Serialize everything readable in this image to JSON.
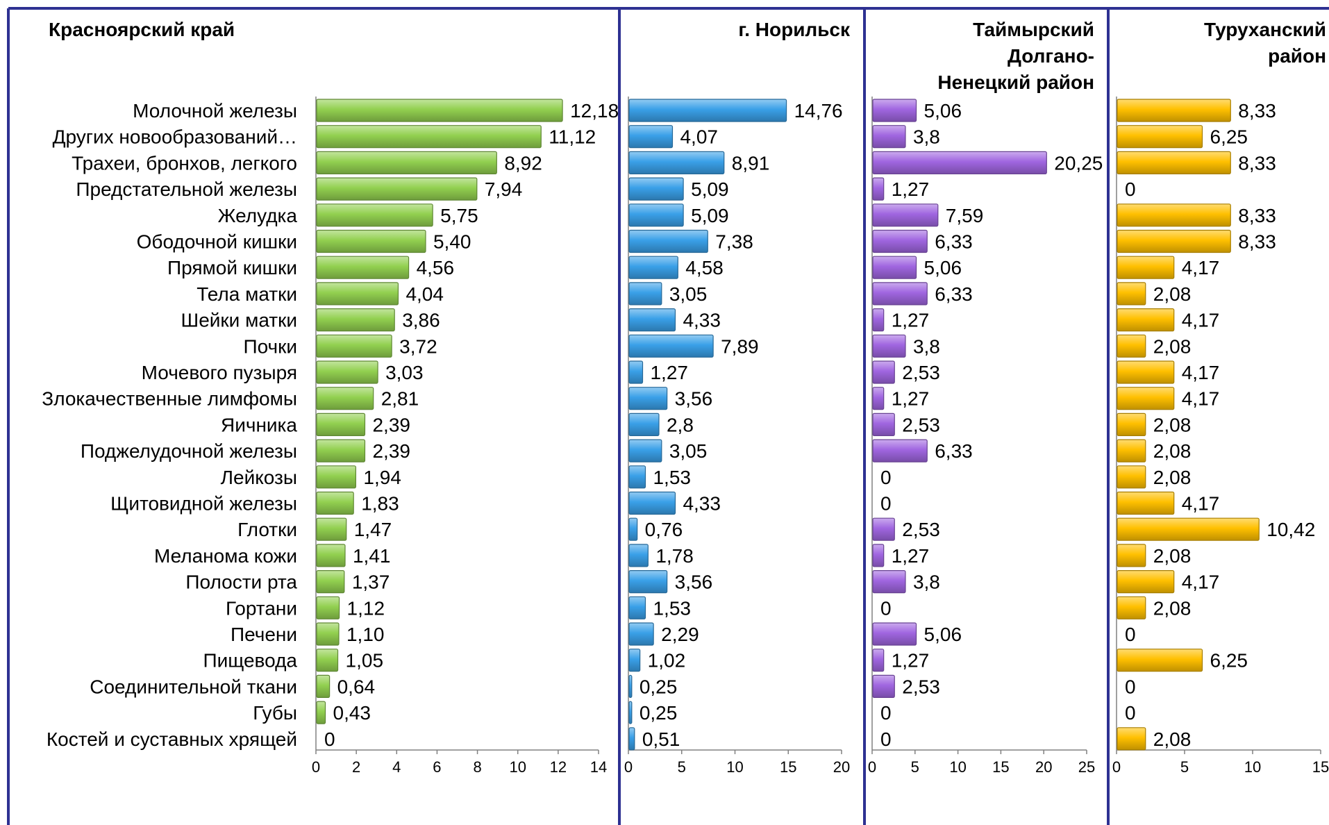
{
  "chart_data": [
    {
      "type": "bar",
      "orientation": "horizontal",
      "title": "Красноярский край",
      "color": "#92d050",
      "xlim": [
        0,
        14
      ],
      "ticks": [
        0,
        2,
        4,
        6,
        8,
        10,
        12,
        14
      ],
      "categories": [
        "Молочной железы",
        "Других новообразований…",
        "Трахеи, бронхов, легкого",
        "Предстательной железы",
        "Желудка",
        "Ободочной кишки",
        "Прямой кишки",
        "Тела матки",
        "Шейки матки",
        "Почки",
        "Мочевого пузыря",
        "Злокачественные лимфомы",
        "Яичника",
        "Поджелудочной железы",
        "Лейкозы",
        "Щитовидной железы",
        "Глотки",
        "Меланома кожи",
        "Полости рта",
        "Гортани",
        "Печени",
        "Пищевода",
        "Соединительной ткани",
        "Губы",
        "Костей и суставных хрящей"
      ],
      "values": [
        12.18,
        11.12,
        8.92,
        7.94,
        5.75,
        5.4,
        4.56,
        4.04,
        3.86,
        3.72,
        3.03,
        2.81,
        2.39,
        2.39,
        1.94,
        1.83,
        1.47,
        1.41,
        1.37,
        1.12,
        1.1,
        1.05,
        0.64,
        0.43,
        0
      ],
      "value_labels": [
        "12,18",
        "11,12",
        "8,92",
        "7,94",
        "5,75",
        "5,40",
        "4,56",
        "4,04",
        "3,86",
        "3,72",
        "3,03",
        "2,81",
        "2,39",
        "2,39",
        "1,94",
        "1,83",
        "1,47",
        "1,41",
        "1,37",
        "1,12",
        "1,10",
        "1,05",
        "0,64",
        "0,43",
        "0"
      ]
    },
    {
      "type": "bar",
      "orientation": "horizontal",
      "title": "г. Норильск",
      "color": "#3aa0e8",
      "xlim": [
        0,
        20
      ],
      "ticks": [
        0,
        5,
        10,
        15,
        20
      ],
      "values": [
        14.76,
        4.07,
        8.91,
        5.09,
        5.09,
        7.38,
        4.58,
        3.05,
        4.33,
        7.89,
        1.27,
        3.56,
        2.8,
        3.05,
        1.53,
        4.33,
        0.76,
        1.78,
        3.56,
        1.53,
        2.29,
        1.02,
        0.25,
        0.25,
        0.51
      ],
      "value_labels": [
        "14,76",
        "4,07",
        "8,91",
        "5,09",
        "5,09",
        "7,38",
        "4,58",
        "3,05",
        "4,33",
        "7,89",
        "1,27",
        "3,56",
        "2,8",
        "3,05",
        "1,53",
        "4,33",
        "0,76",
        "1,78",
        "3,56",
        "1,53",
        "2,29",
        "1,02",
        "0,25",
        "0,25",
        "0,51"
      ]
    },
    {
      "type": "bar",
      "orientation": "horizontal",
      "title": "Таймырский Долгано-Ненецкий район",
      "title_lines": [
        "Таймырский",
        "Долгано-",
        "Ненецкий район"
      ],
      "color": "#a066e0",
      "xlim": [
        0,
        25
      ],
      "ticks": [
        0,
        5,
        10,
        15,
        20,
        25
      ],
      "values": [
        5.06,
        3.8,
        20.25,
        1.27,
        7.59,
        6.33,
        5.06,
        6.33,
        1.27,
        3.8,
        2.53,
        1.27,
        2.53,
        6.33,
        0,
        0,
        2.53,
        1.27,
        3.8,
        0,
        5.06,
        1.27,
        2.53,
        0,
        0
      ],
      "value_labels": [
        "5,06",
        "3,8",
        "20,25",
        "1,27",
        "7,59",
        "6,33",
        "5,06",
        "6,33",
        "1,27",
        "3,8",
        "2,53",
        "1,27",
        "2,53",
        "6,33",
        "0",
        "0",
        "2,53",
        "1,27",
        "3,8",
        "0",
        "5,06",
        "1,27",
        "2,53",
        "0",
        "0"
      ]
    },
    {
      "type": "bar",
      "orientation": "horizontal",
      "title": "Туруханский район",
      "title_lines": [
        "Туруханский",
        "район"
      ],
      "color": "#ffc000",
      "xlim": [
        0,
        15
      ],
      "ticks": [
        0,
        5,
        10,
        15
      ],
      "values": [
        8.33,
        6.25,
        8.33,
        0,
        8.33,
        8.33,
        4.17,
        2.08,
        4.17,
        2.08,
        4.17,
        4.17,
        2.08,
        2.08,
        2.08,
        4.17,
        10.42,
        2.08,
        4.17,
        2.08,
        0,
        6.25,
        0,
        0,
        2.08
      ],
      "value_labels": [
        "8,33",
        "6,25",
        "8,33",
        "0",
        "8,33",
        "8,33",
        "4,17",
        "2,08",
        "4,17",
        "2,08",
        "4,17",
        "4,17",
        "2,08",
        "2,08",
        "2,08",
        "4,17",
        "10,42",
        "2,08",
        "4,17",
        "2,08",
        "0",
        "6,25",
        "0",
        "0",
        "2,08"
      ]
    }
  ]
}
